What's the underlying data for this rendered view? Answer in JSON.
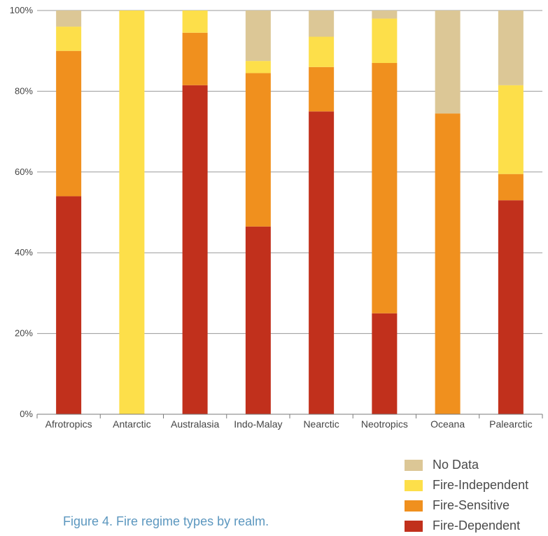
{
  "chart_data": {
    "type": "bar",
    "stacked": true,
    "categories": [
      "Afrotropics",
      "Antarctic",
      "Australasia",
      "Indo-Malay",
      "Nearctic",
      "Neotropics",
      "Oceana",
      "Palearctic"
    ],
    "series": [
      {
        "name": "Fire-Dependent",
        "color": "#c1301c",
        "values": [
          54,
          0,
          81.5,
          46.5,
          75,
          25,
          0,
          53
        ]
      },
      {
        "name": "Fire-Sensitive",
        "color": "#f0901e",
        "values": [
          36,
          0,
          13,
          38,
          11,
          62,
          74.5,
          6.5
        ]
      },
      {
        "name": "Fire-Independent",
        "color": "#fddf4a",
        "values": [
          6,
          100,
          5.5,
          3,
          7.5,
          11,
          0,
          22
        ]
      },
      {
        "name": "No Data",
        "color": "#dcc796",
        "values": [
          4,
          0,
          0,
          12.5,
          6.5,
          2,
          25.5,
          18.5
        ]
      }
    ],
    "legend_order": [
      "No Data",
      "Fire-Independent",
      "Fire-Sensitive",
      "Fire-Dependent"
    ],
    "yticks": [
      "0%",
      "20%",
      "40%",
      "60%",
      "80%",
      "100%"
    ],
    "ylim": [
      0,
      100
    ],
    "grid": true,
    "legend_position": "bottom-right"
  },
  "caption": "Figure 4. Fire regime types by realm."
}
